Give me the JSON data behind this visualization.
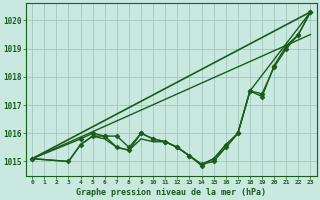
{
  "xlabel": "Graphe pression niveau de la mer (hPa)",
  "background_color": "#c8e8e0",
  "plot_bg_color": "#c8e8e0",
  "grid_color": "#9bbfb8",
  "line_color": "#1a5c1a",
  "hours": [
    0,
    1,
    2,
    3,
    4,
    5,
    6,
    7,
    8,
    9,
    10,
    11,
    12,
    13,
    14,
    15,
    16,
    17,
    18,
    19,
    20,
    21,
    22,
    23
  ],
  "series": [
    {
      "x": [
        0,
        23
      ],
      "y": [
        1015.1,
        1020.3
      ],
      "lw": 1.2,
      "ls": "-",
      "marker": null,
      "ms": 0
    },
    {
      "x": [
        0,
        4,
        5,
        6,
        7,
        8,
        9,
        10,
        11,
        12,
        13,
        14,
        15,
        16,
        17,
        18,
        19,
        20,
        21,
        22,
        23
      ],
      "y": [
        1015.1,
        1015.8,
        1016.0,
        1015.9,
        1015.9,
        1015.5,
        1016.0,
        1015.8,
        1015.7,
        1015.5,
        1015.2,
        1014.9,
        1015.0,
        1015.5,
        1016.0,
        1017.5,
        1017.3,
        1018.4,
        1019.1,
        1019.5,
        1020.3
      ],
      "lw": 1.0,
      "ls": "-",
      "marker": "D",
      "ms": 2.5
    },
    {
      "x": [
        0,
        3,
        4,
        5,
        6,
        7,
        8,
        9,
        10,
        11,
        12,
        13,
        14,
        15,
        16,
        17,
        18,
        23
      ],
      "y": [
        1015.1,
        1015.0,
        1015.6,
        1015.9,
        1015.8,
        1015.5,
        1015.4,
        1015.8,
        1015.7,
        1015.7,
        1015.5,
        1015.2,
        1014.9,
        1015.1,
        1015.5,
        1016.0,
        1017.5,
        1020.3
      ],
      "lw": 1.0,
      "ls": "-",
      "marker": null,
      "ms": 0
    },
    {
      "x": [
        0,
        23
      ],
      "y": [
        1015.1,
        1019.5
      ],
      "lw": 1.0,
      "ls": "-",
      "marker": null,
      "ms": 0
    },
    {
      "x": [
        0,
        3,
        4,
        5,
        6,
        7,
        8,
        9,
        10,
        11,
        12,
        13,
        14,
        15,
        16,
        17,
        18,
        19,
        20,
        21,
        22,
        23
      ],
      "y": [
        1015.1,
        1015.0,
        1015.6,
        1015.9,
        1015.9,
        1015.5,
        1015.4,
        1016.0,
        1015.8,
        1015.7,
        1015.5,
        1015.2,
        1014.85,
        1015.1,
        1015.6,
        1016.0,
        1017.5,
        1017.4,
        1018.35,
        1019.0,
        1019.5,
        1020.3
      ],
      "lw": 1.0,
      "ls": "-",
      "marker": "D",
      "ms": 2.5
    }
  ],
  "ylim": [
    1014.5,
    1020.6
  ],
  "yticks": [
    1015,
    1016,
    1017,
    1018,
    1019,
    1020
  ],
  "xticks": [
    0,
    1,
    2,
    3,
    4,
    5,
    6,
    7,
    8,
    9,
    10,
    11,
    12,
    13,
    14,
    15,
    16,
    17,
    18,
    19,
    20,
    21,
    22,
    23
  ]
}
